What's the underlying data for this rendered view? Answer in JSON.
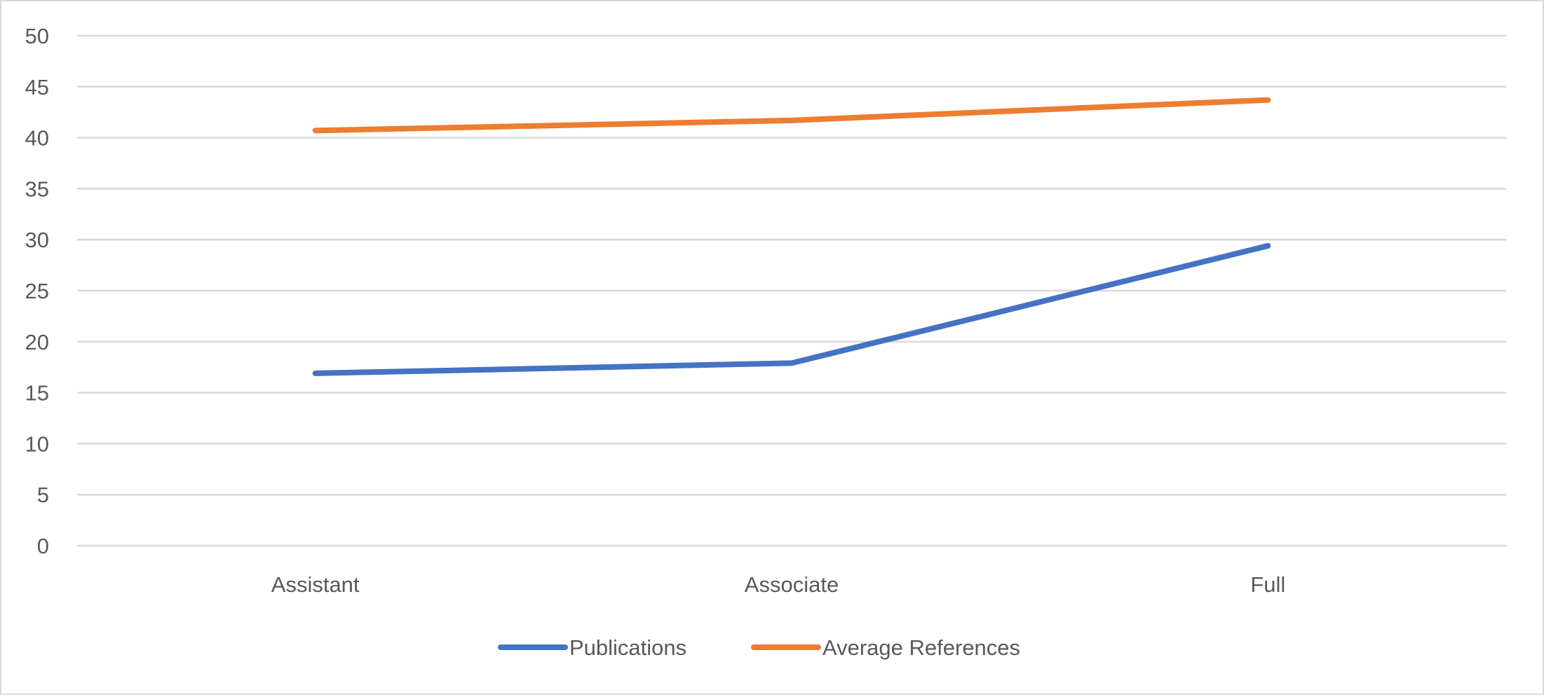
{
  "chart_data": {
    "type": "line",
    "title": "",
    "xlabel": "",
    "ylabel": "",
    "categories": [
      "Assistant",
      "Associate",
      "Full"
    ],
    "series": [
      {
        "name": "Publications",
        "color": "#4472C4",
        "values": [
          16.9,
          17.9,
          29.4
        ]
      },
      {
        "name": "Average References",
        "color": "#ED7D31",
        "values": [
          40.7,
          41.7,
          43.7
        ]
      }
    ],
    "ylim": [
      0,
      50
    ],
    "yticks": [
      0,
      5,
      10,
      15,
      20,
      25,
      30,
      35,
      40,
      45,
      50
    ],
    "grid": true,
    "legend_position": "bottom"
  }
}
